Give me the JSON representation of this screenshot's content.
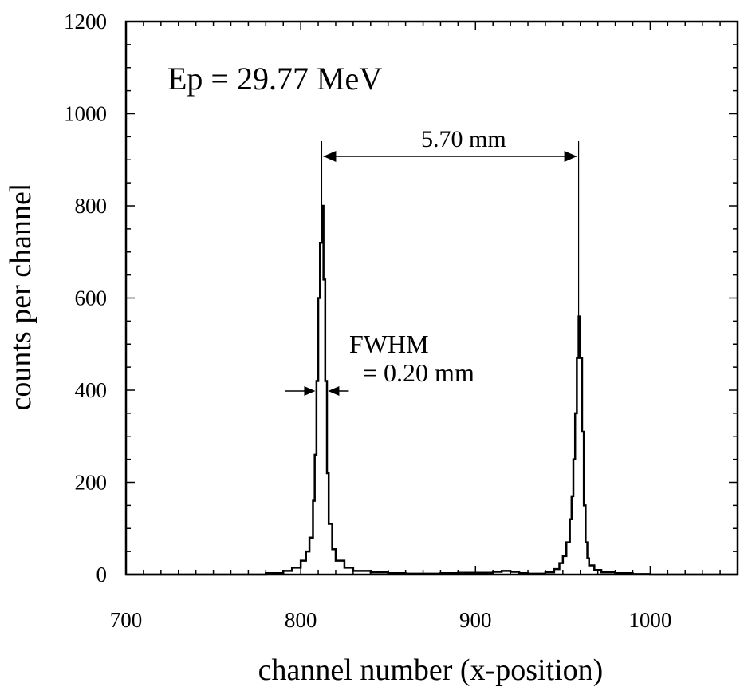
{
  "chart_data": {
    "type": "line",
    "xlabel": "channel number (x-position)",
    "ylabel": "counts per channel",
    "xlim": [
      700,
      1050
    ],
    "ylim": [
      0,
      1200
    ],
    "x_ticks": [
      "700",
      "800",
      "900",
      "1000"
    ],
    "y_ticks": [
      "0",
      "200",
      "400",
      "600",
      "800",
      "1000",
      "1200"
    ],
    "grid": false,
    "legend": "none",
    "series": [
      {
        "x": [
          700,
          770,
          780,
          790,
          795,
          800,
          803,
          805,
          807,
          808,
          809,
          810,
          811,
          812,
          813,
          814,
          815,
          816,
          818,
          820,
          825,
          830,
          840,
          850,
          860,
          870,
          880,
          890,
          900,
          910,
          915,
          920,
          925,
          930,
          940,
          945,
          948,
          950,
          952,
          954,
          955,
          956,
          957,
          958,
          959,
          960,
          961,
          962,
          963,
          964,
          965,
          968,
          972,
          980,
          990,
          1000,
          1020,
          1050
        ],
        "y": [
          0,
          0,
          3,
          8,
          15,
          30,
          50,
          80,
          160,
          260,
          420,
          600,
          720,
          800,
          640,
          420,
          220,
          110,
          55,
          30,
          15,
          8,
          5,
          3,
          2,
          2,
          3,
          4,
          4,
          6,
          8,
          6,
          3,
          2,
          5,
          12,
          25,
          40,
          70,
          120,
          170,
          250,
          350,
          470,
          560,
          470,
          310,
          150,
          70,
          35,
          20,
          10,
          5,
          3,
          1,
          0,
          0,
          0
        ]
      }
    ],
    "annotations": {
      "energy": "Ep = 29.77 MeV",
      "separation": "5.70 mm",
      "fwhm_label": "FWHM",
      "fwhm_value": "= 0.20 mm"
    },
    "peak_positions": [
      812,
      959
    ],
    "fwhm_arrow_center": 812
  }
}
